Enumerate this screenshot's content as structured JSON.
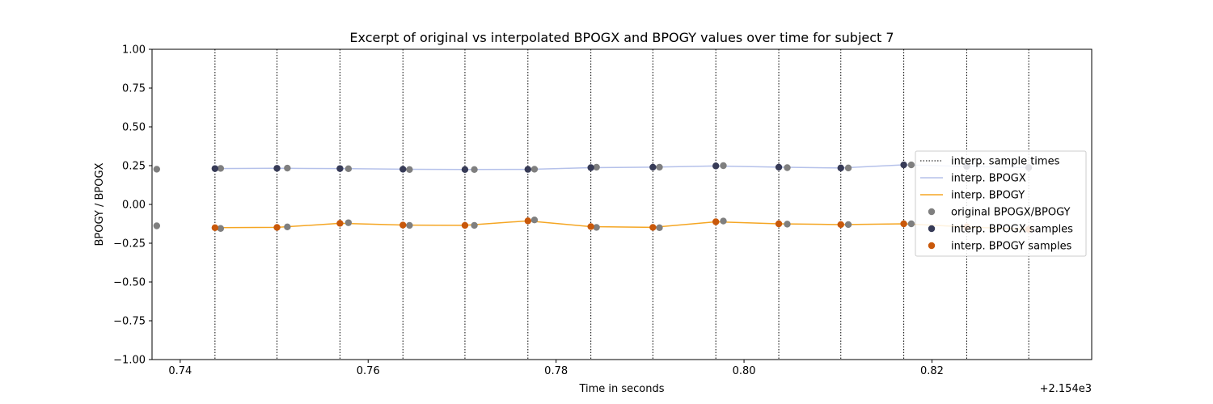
{
  "chart_data": {
    "type": "line",
    "title": "Excerpt of original vs interpolated BPOGX and BPOGY values over time for subject 7",
    "xlabel": "Time in seconds",
    "ylabel": "BPOGY / BPOGX",
    "x_offset_label": "+2.154e3",
    "xlim": [
      0.737,
      0.837
    ],
    "ylim": [
      -1.0,
      1.0
    ],
    "xticks": [
      0.74,
      0.76,
      0.78,
      0.8,
      0.82
    ],
    "xtick_labels": [
      "0.74",
      "0.76",
      "0.78",
      "0.80",
      "0.82"
    ],
    "yticks": [
      -1.0,
      -0.75,
      -0.5,
      -0.25,
      0.0,
      0.25,
      0.5,
      0.75,
      1.0
    ],
    "ytick_labels": [
      "−1.00",
      "−0.75",
      "−0.50",
      "−0.25",
      "0.00",
      "0.25",
      "0.50",
      "0.75",
      "1.00"
    ],
    "legend_position": "right",
    "sample_times": [
      0.7437,
      0.7503,
      0.757,
      0.7637,
      0.7703,
      0.777,
      0.7837,
      0.7903,
      0.797,
      0.8037,
      0.8103,
      0.817,
      0.8237,
      0.8303
    ],
    "original_x": [
      0.7375,
      0.7443,
      0.7514,
      0.7579,
      0.7644,
      0.7713,
      0.7777,
      0.7843,
      0.791,
      0.7978,
      0.8046,
      0.8111,
      0.8178
    ],
    "original_bpogx": [
      0.227,
      0.232,
      0.234,
      0.23,
      0.225,
      0.225,
      0.227,
      0.24,
      0.24,
      0.25,
      0.237,
      0.235,
      0.255
    ],
    "original_bpogy": [
      -0.138,
      -0.155,
      -0.145,
      -0.118,
      -0.135,
      -0.135,
      -0.1,
      -0.148,
      -0.15,
      -0.107,
      -0.127,
      -0.13,
      -0.125
    ],
    "interp_bpogx_values": [
      0.231,
      0.233,
      0.231,
      0.227,
      0.225,
      0.226,
      0.237,
      0.24,
      0.248,
      0.24,
      0.235,
      0.255,
      0.245,
      0.238
    ],
    "interp_bpogy_values": [
      -0.15,
      -0.148,
      -0.122,
      -0.133,
      -0.135,
      -0.106,
      -0.143,
      -0.148,
      -0.112,
      -0.125,
      -0.13,
      -0.125,
      -0.145,
      -0.16
    ],
    "series": [
      {
        "name": "interp. sample times",
        "style": "dotted-vline",
        "color": "#000000"
      },
      {
        "name": "interp. BPOGX",
        "style": "line",
        "color": "#b5c1ea"
      },
      {
        "name": "interp. BPOGY",
        "style": "line",
        "color": "#f5a623"
      },
      {
        "name": "original BPOGX/BPOGY",
        "style": "marker",
        "color": "#7f7f7f"
      },
      {
        "name": "interp. BPOGX samples",
        "style": "marker",
        "color": "#373b57"
      },
      {
        "name": "interp. BPOGY samples",
        "style": "marker",
        "color": "#c9580a"
      }
    ]
  }
}
